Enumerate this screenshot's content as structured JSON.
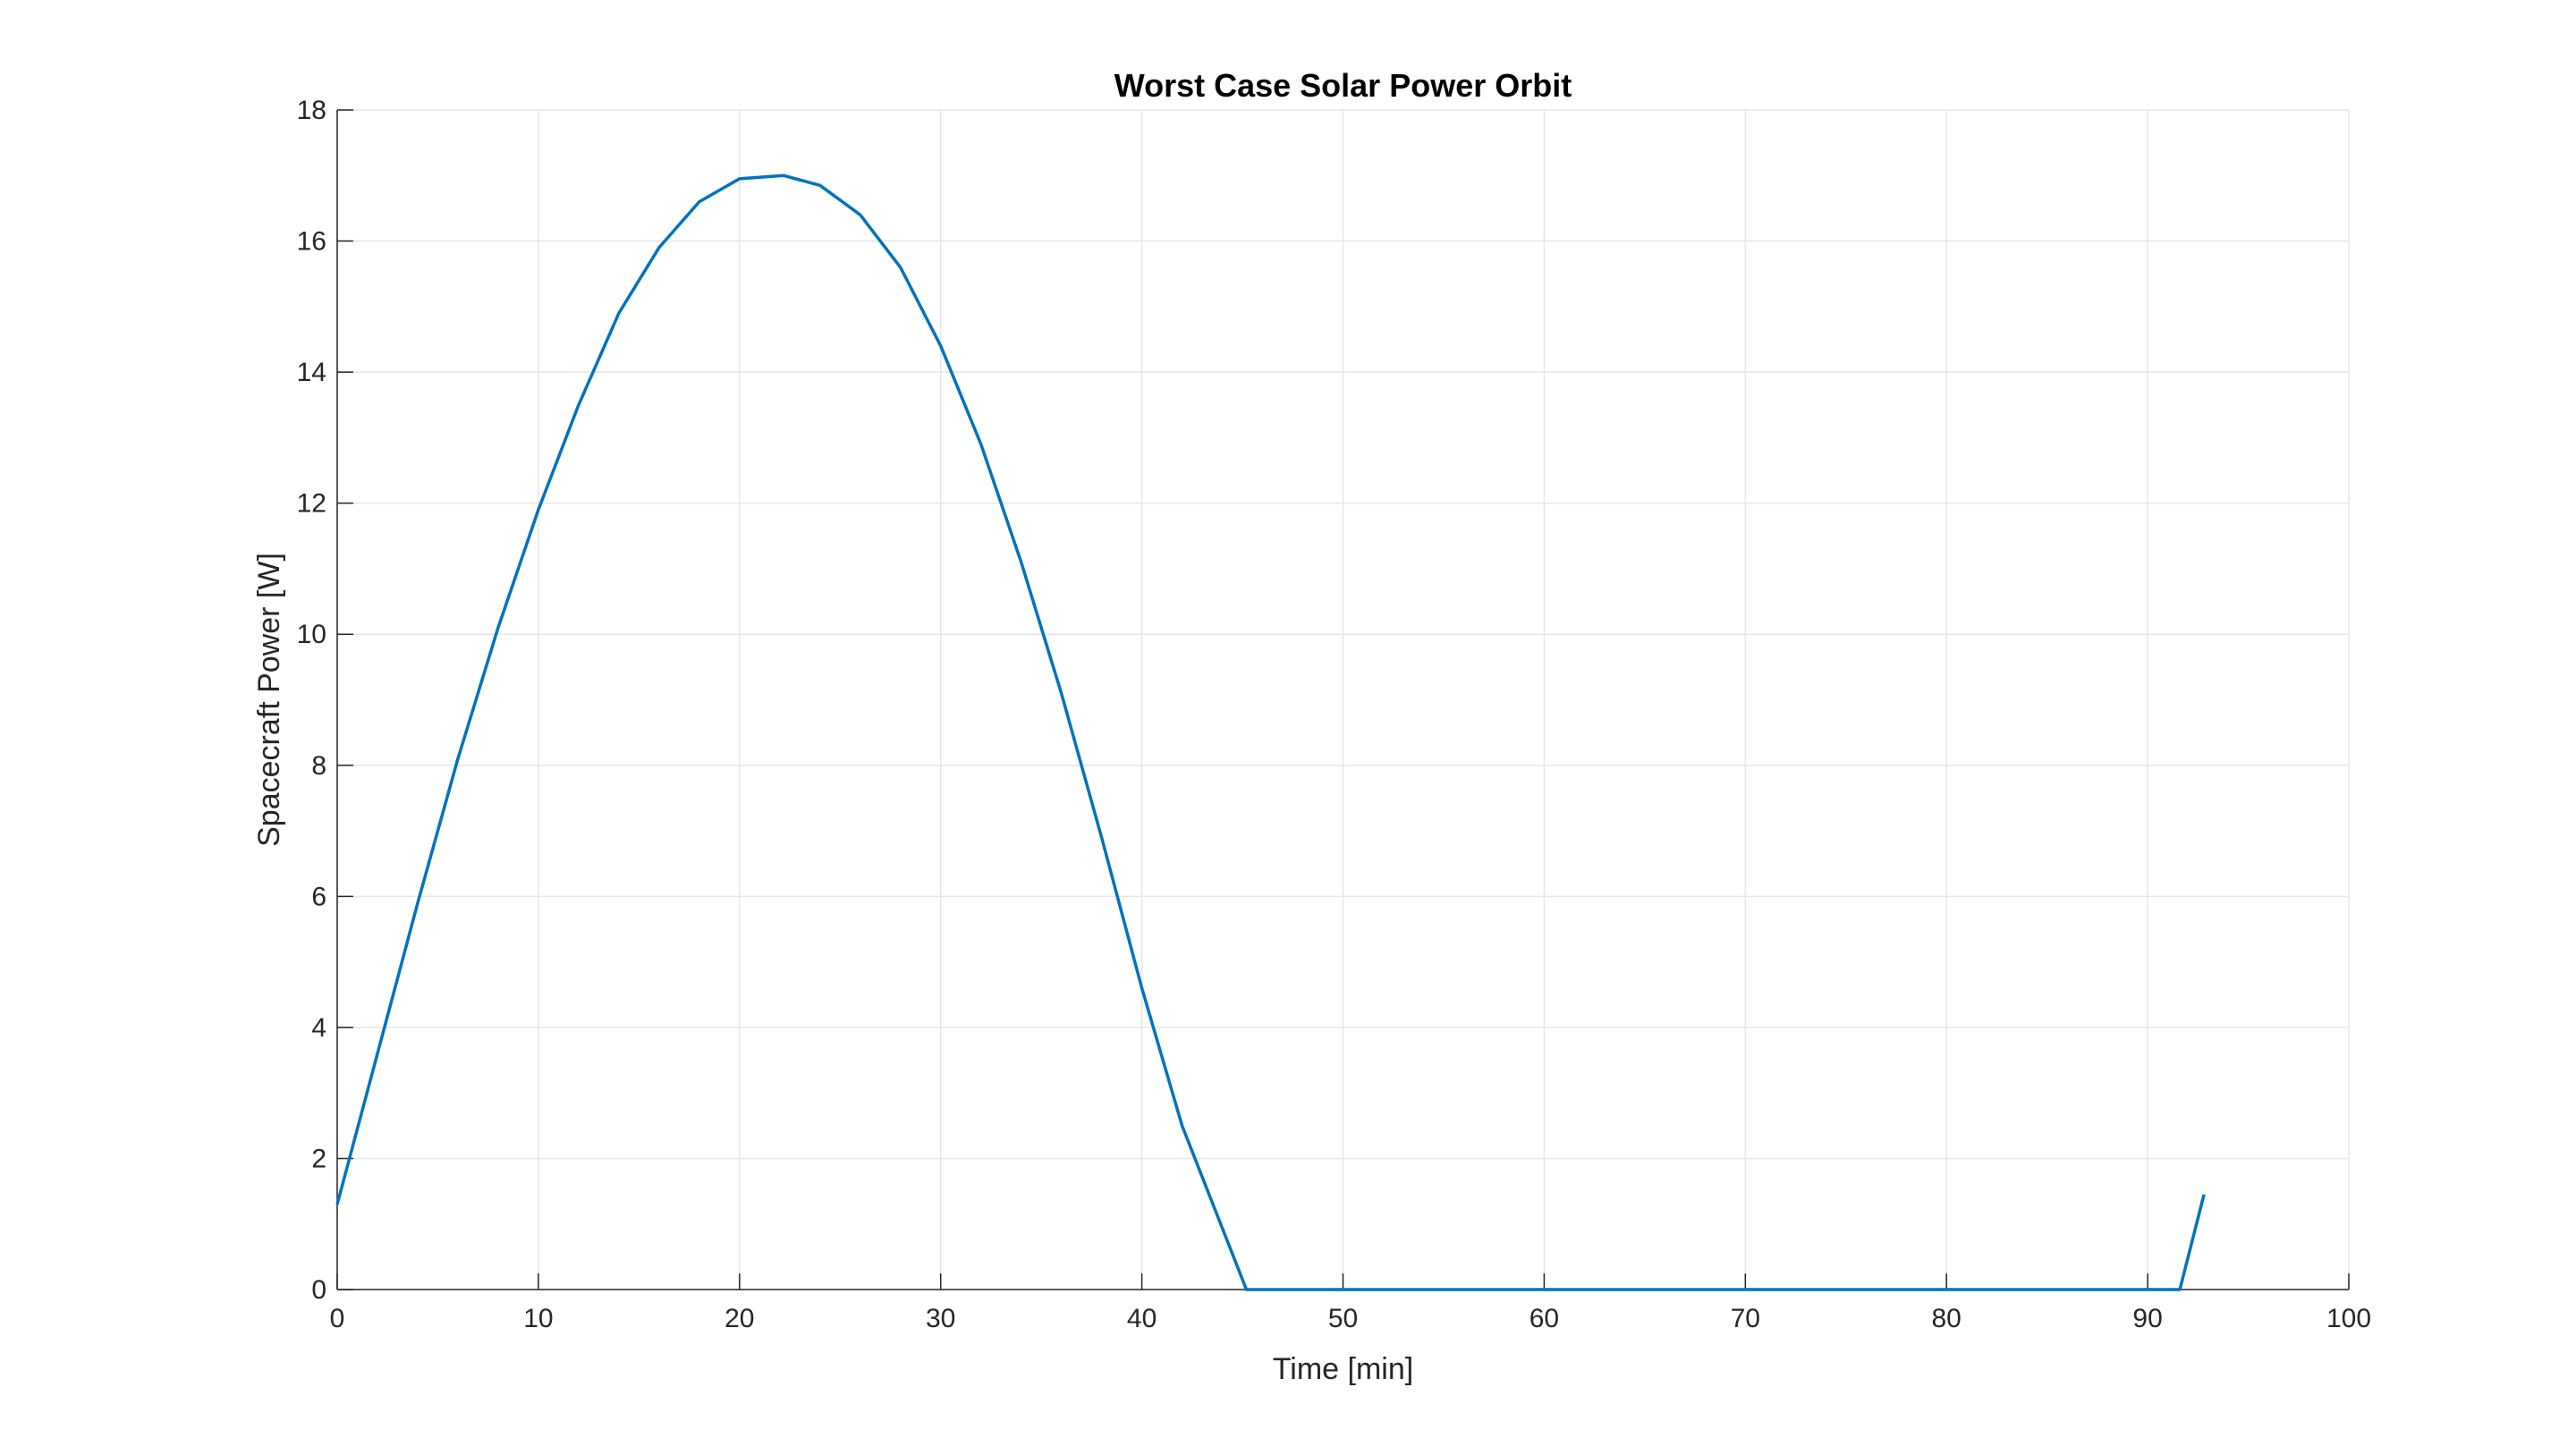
{
  "chart_data": {
    "type": "line",
    "title": "Worst Case Solar Power Orbit",
    "xlabel": "Time [min]",
    "ylabel": "Spacecraft Power [W]",
    "xlim": [
      0,
      100
    ],
    "ylim": [
      0,
      18
    ],
    "xticks": [
      0,
      10,
      20,
      30,
      40,
      50,
      60,
      70,
      80,
      90,
      100
    ],
    "yticks": [
      0,
      2,
      4,
      6,
      8,
      10,
      12,
      14,
      16,
      18
    ],
    "grid": true,
    "legend": "none",
    "series": [
      {
        "color": "#0072bd",
        "points": [
          [
            0,
            1.3
          ],
          [
            2,
            3.6
          ],
          [
            4,
            5.9
          ],
          [
            6,
            8.1
          ],
          [
            8,
            10.1
          ],
          [
            10,
            11.9
          ],
          [
            12,
            13.5
          ],
          [
            14,
            14.9
          ],
          [
            16,
            15.9
          ],
          [
            18,
            16.6
          ],
          [
            20,
            16.95
          ],
          [
            22.2,
            17.0
          ],
          [
            24,
            16.85
          ],
          [
            26,
            16.4
          ],
          [
            28,
            15.6
          ],
          [
            30,
            14.4
          ],
          [
            32,
            12.9
          ],
          [
            34,
            11.1
          ],
          [
            36,
            9.1
          ],
          [
            38,
            6.9
          ],
          [
            40,
            4.6
          ],
          [
            42,
            2.5
          ],
          [
            45.2,
            0
          ],
          [
            91.6,
            0
          ],
          [
            92.8,
            1.45
          ]
        ]
      }
    ]
  }
}
